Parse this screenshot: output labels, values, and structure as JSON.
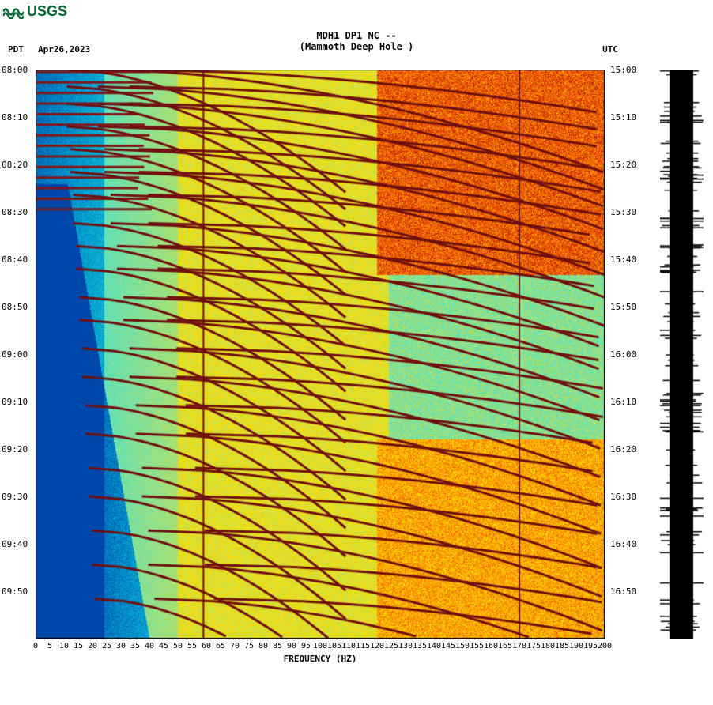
{
  "logo_text": "USGS",
  "header": {
    "line1": "MDH1 DP1 NC --",
    "line2": "(Mammoth Deep Hole )",
    "date": "Apr26,2023",
    "tz_left": "PDT",
    "tz_right": "UTC"
  },
  "spectrogram": {
    "type": "spectrogram",
    "freq_min": 0,
    "freq_max": 200,
    "freq_tick_step": 5,
    "time_rows": 720,
    "left_time_ticks": [
      "08:00",
      "08:10",
      "08:20",
      "08:30",
      "08:40",
      "08:50",
      "09:00",
      "09:10",
      "09:20",
      "09:30",
      "09:40",
      "09:50"
    ],
    "right_time_ticks": [
      "15:00",
      "15:10",
      "15:20",
      "15:30",
      "15:40",
      "15:50",
      "16:00",
      "16:10",
      "16:20",
      "16:30",
      "16:40",
      "16:50"
    ],
    "xlabel": "FREQUENCY (HZ)",
    "colormap": {
      "stops": [
        {
          "v": 0.0,
          "c": "#0047ab"
        },
        {
          "v": 0.12,
          "c": "#00a0d0"
        },
        {
          "v": 0.25,
          "c": "#40e0d0"
        },
        {
          "v": 0.38,
          "c": "#8fe08f"
        },
        {
          "v": 0.5,
          "c": "#d0e040"
        },
        {
          "v": 0.62,
          "c": "#ffe000"
        },
        {
          "v": 0.75,
          "c": "#ff9000"
        },
        {
          "v": 0.88,
          "c": "#e03000"
        },
        {
          "v": 1.0,
          "c": "#701010"
        }
      ]
    },
    "vertical_lines_freq": [
      59,
      170
    ],
    "vertical_line_color": "#701010",
    "sweep_events": [
      {
        "t_start": 0.0,
        "freq_start": 20
      },
      {
        "t_start": 0.03,
        "freq_start": 20
      },
      {
        "t_start": 0.06,
        "freq_start": 20
      },
      {
        "t_start": 0.1,
        "freq_start": 20
      },
      {
        "t_start": 0.14,
        "freq_start": 22
      },
      {
        "t_start": 0.18,
        "freq_start": 22
      },
      {
        "t_start": 0.22,
        "freq_start": 24
      },
      {
        "t_start": 0.27,
        "freq_start": 24
      },
      {
        "t_start": 0.31,
        "freq_start": 26
      },
      {
        "t_start": 0.35,
        "freq_start": 26
      },
      {
        "t_start": 0.4,
        "freq_start": 28
      },
      {
        "t_start": 0.44,
        "freq_start": 28
      },
      {
        "t_start": 0.49,
        "freq_start": 30
      },
      {
        "t_start": 0.54,
        "freq_start": 30
      },
      {
        "t_start": 0.59,
        "freq_start": 32
      },
      {
        "t_start": 0.64,
        "freq_start": 32
      },
      {
        "t_start": 0.7,
        "freq_start": 34
      },
      {
        "t_start": 0.75,
        "freq_start": 34
      },
      {
        "t_start": 0.81,
        "freq_start": 36
      },
      {
        "t_start": 0.87,
        "freq_start": 36
      },
      {
        "t_start": 0.93,
        "freq_start": 38
      }
    ],
    "sweep_color": "#701010",
    "sweep_width": 3,
    "sweep_duration": 0.22,
    "sweep_freq_end": 200,
    "horizontal_bands_top": {
      "count": 14,
      "t_end": 0.26,
      "color": "#801818",
      "thickness": 3
    },
    "hot_region": {
      "t0": 0.0,
      "t1": 0.36,
      "f0": 120,
      "f1": 200
    },
    "warm_region": {
      "t0": 0.65,
      "t1": 1.0,
      "f0": 120,
      "f1": 200
    },
    "noise_seed": 42
  },
  "waveform": {
    "type": "waveform-vertical",
    "background": "#ffffff",
    "trace_color": "#000000",
    "center_width": 30,
    "spike_count": 90
  }
}
